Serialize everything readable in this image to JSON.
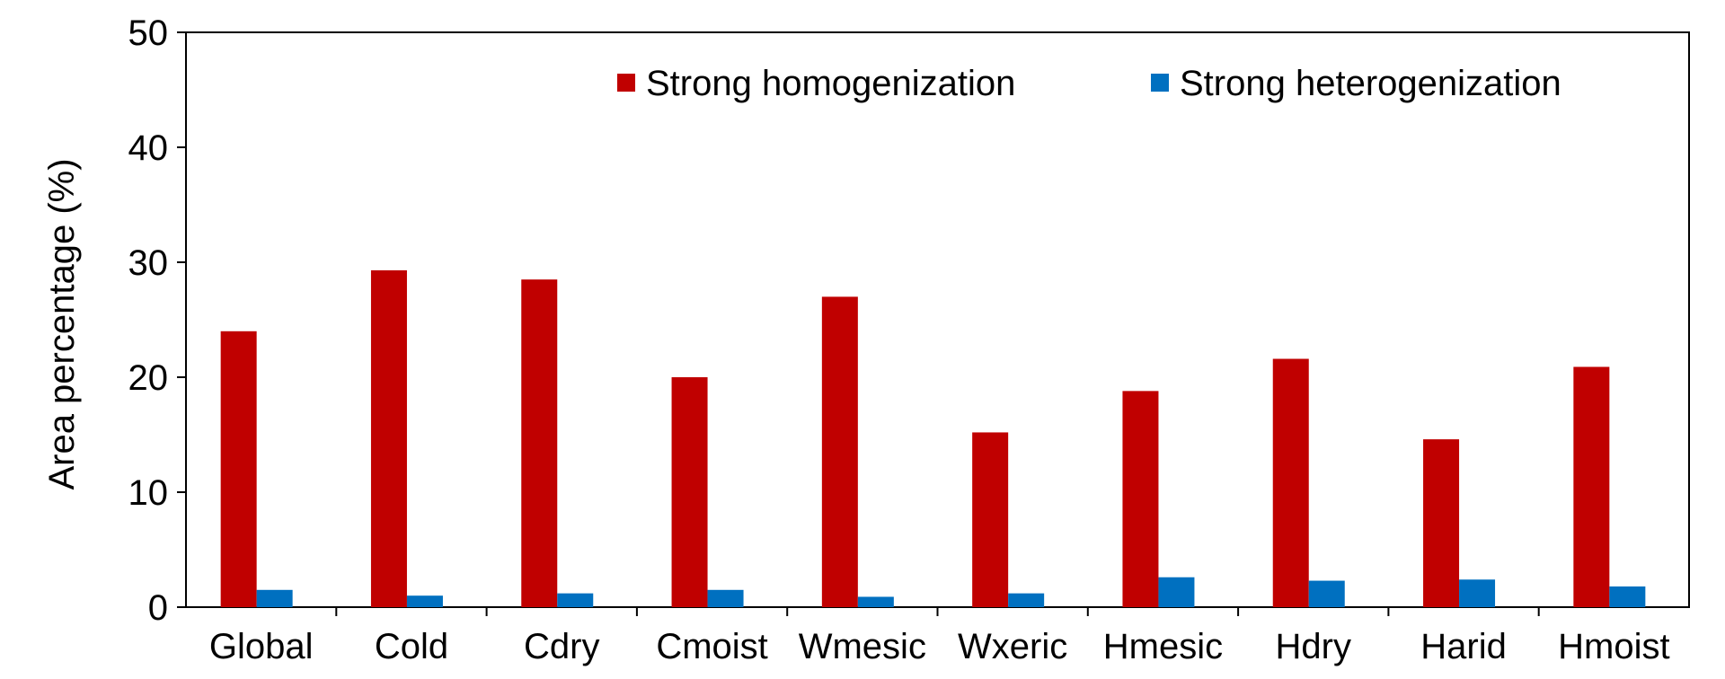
{
  "chart_data": {
    "type": "bar",
    "title": "",
    "xlabel": "",
    "ylabel": "Area percentage (%)",
    "ylim": [
      0,
      50
    ],
    "yticks": [
      "0",
      "10",
      "20",
      "30",
      "40",
      "50"
    ],
    "categories": [
      "Global",
      "Cold",
      "Cdry",
      "Cmoist",
      "Wmesic",
      "Wxeric",
      "Hmesic",
      "Hdry",
      "Harid",
      "Hmoist"
    ],
    "series": [
      {
        "name": "Strong homogenization",
        "color": "#c00000",
        "values": [
          24.0,
          29.3,
          28.5,
          20.0,
          27.0,
          15.2,
          18.8,
          21.6,
          14.6,
          20.9
        ]
      },
      {
        "name": "Strong heterogenization",
        "color": "#0070c0",
        "values": [
          1.5,
          1.0,
          1.2,
          1.5,
          0.9,
          1.2,
          2.6,
          2.3,
          2.4,
          1.8
        ]
      }
    ],
    "legend_position": "top-right",
    "grid": false
  }
}
